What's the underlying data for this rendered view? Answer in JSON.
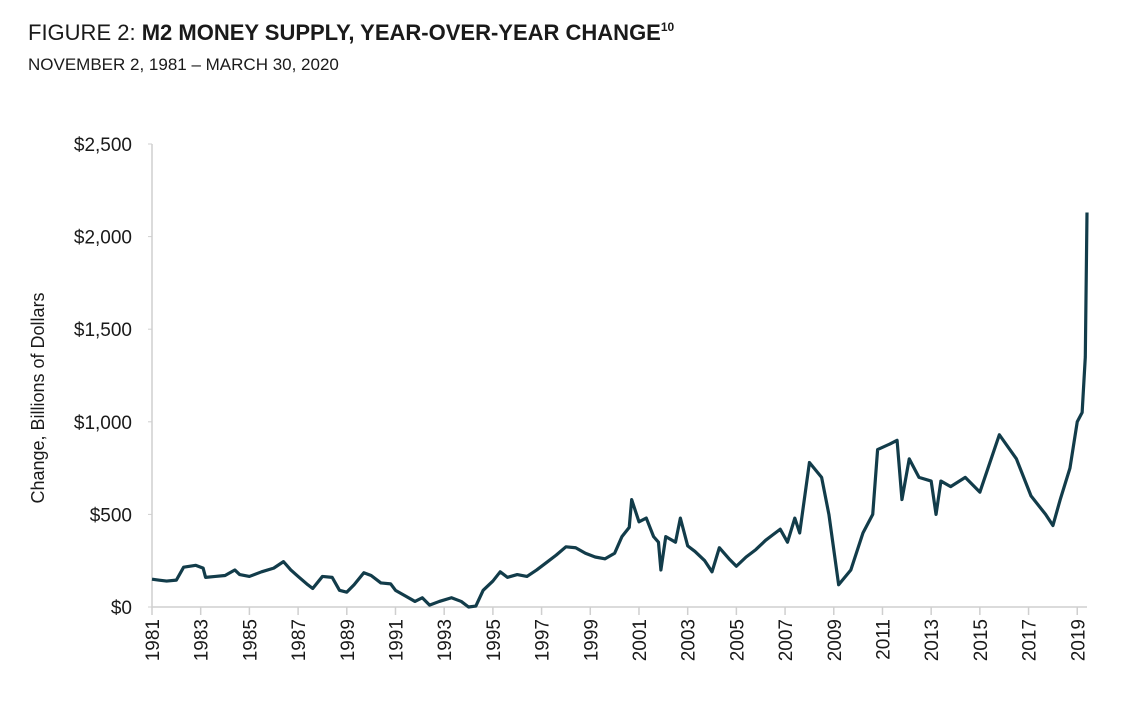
{
  "chart_data": {
    "type": "line",
    "figure_label": "FIGURE 2:",
    "title": "M2 MONEY SUPPLY, YEAR-OVER-YEAR CHANGE",
    "footnote_ref": "10",
    "subtitle": "NOVEMBER 2, 1981 – MARCH 30, 2020",
    "y_label": "Change, Billions of Dollars",
    "xlim": [
      1981,
      2019.4
    ],
    "xticks": [
      1981,
      1983,
      1985,
      1987,
      1989,
      1991,
      1993,
      1995,
      1997,
      1999,
      2001,
      2003,
      2005,
      2007,
      2009,
      2011,
      2013,
      2015,
      2017,
      2019
    ],
    "ylim": [
      0,
      2500
    ],
    "yticks": [
      {
        "value": 0,
        "label": "$0"
      },
      {
        "value": 500,
        "label": "$500"
      },
      {
        "value": 1000,
        "label": "$1,000"
      },
      {
        "value": 1500,
        "label": "$1,500"
      },
      {
        "value": 2000,
        "label": "$2,000"
      },
      {
        "value": 2500,
        "label": "$2,500"
      }
    ],
    "grid": false,
    "series": [
      {
        "name": "M2 year-over-year change",
        "color": "#123c4a",
        "x": [
          1981,
          1981.3,
          1981.6,
          1982,
          1982.3,
          1982.8,
          1983.1,
          1983.2,
          1983.6,
          1984,
          1984.4,
          1984.6,
          1985,
          1985.5,
          1986,
          1986.4,
          1986.7,
          1987,
          1987.4,
          1987.6,
          1988,
          1988.4,
          1988.7,
          1989,
          1989.3,
          1989.7,
          1990,
          1990.4,
          1990.8,
          1991,
          1991.4,
          1991.8,
          1992.1,
          1992.4,
          1992.8,
          1993.3,
          1993.7,
          1994,
          1994.3,
          1994.6,
          1995,
          1995.3,
          1995.6,
          1996,
          1996.4,
          1996.8,
          1997.2,
          1997.6,
          1998,
          1998.4,
          1998.8,
          1999.2,
          1999.6,
          2000,
          2000.3,
          2000.6,
          2000.7,
          2001,
          2001.3,
          2001.6,
          2001.8,
          2001.9,
          2002.1,
          2002.5,
          2002.7,
          2003,
          2003.3,
          2003.7,
          2004,
          2004.3,
          2004.7,
          2005,
          2005.4,
          2005.8,
          2006.2,
          2006.5,
          2006.8,
          2007.1,
          2007.4,
          2007.6,
          2008,
          2008.5,
          2008.8,
          2009.2,
          2009.7,
          2010.2,
          2010.6,
          2010.8,
          2011.3,
          2011.6,
          2011.8,
          2012.1,
          2012.5,
          2013,
          2013.2,
          2013.4,
          2013.8,
          2014.4,
          2015,
          2015.8,
          2016.5,
          2017.1,
          2017.7,
          2018,
          2018.3,
          2018.7,
          2019,
          2019.2,
          2019.33,
          2019.4
        ],
        "values": [
          150,
          145,
          140,
          145,
          215,
          225,
          210,
          160,
          165,
          170,
          200,
          175,
          165,
          190,
          210,
          245,
          200,
          165,
          120,
          100,
          165,
          160,
          90,
          80,
          120,
          185,
          170,
          130,
          125,
          90,
          60,
          30,
          50,
          10,
          30,
          50,
          30,
          0,
          5,
          90,
          140,
          190,
          160,
          175,
          165,
          200,
          240,
          280,
          325,
          320,
          290,
          270,
          260,
          290,
          380,
          430,
          580,
          460,
          480,
          380,
          350,
          200,
          380,
          350,
          480,
          330,
          300,
          250,
          190,
          320,
          260,
          220,
          270,
          310,
          360,
          390,
          420,
          350,
          480,
          400,
          780,
          700,
          500,
          120,
          200,
          400,
          500,
          850,
          880,
          900,
          580,
          800,
          700,
          680,
          500,
          680,
          650,
          700,
          620,
          930,
          800,
          600,
          500,
          440,
          580,
          750,
          1000,
          1050,
          1350,
          2130
        ]
      }
    ]
  }
}
